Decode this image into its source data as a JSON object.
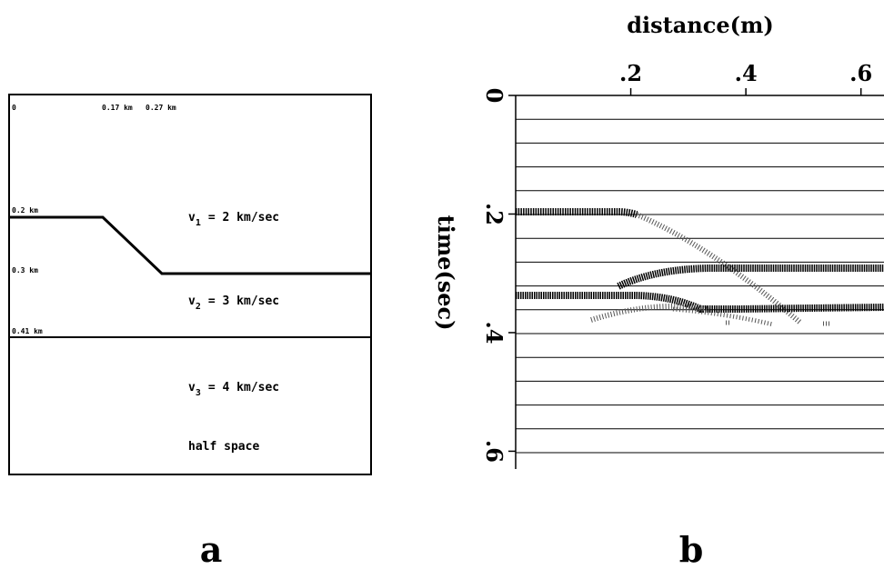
{
  "panel_a": {
    "label": "a",
    "top_labels": [
      "0",
      "0.17 km",
      "0.27 km"
    ],
    "depth_labels": [
      "0.2 km",
      "0.3 km",
      "0.41 km"
    ],
    "layers": [
      {
        "symbol": "v",
        "subscript": "1",
        "text": "= 2 km/sec"
      },
      {
        "symbol": "v",
        "subscript": "2",
        "text": "= 3 km/sec"
      },
      {
        "symbol": "v",
        "subscript": "3",
        "text": "= 4 km/sec"
      }
    ],
    "half_space": "half space"
  },
  "panel_b": {
    "label": "b",
    "x_label": "distance(m)",
    "y_label": "time(sec)",
    "xlim": [
      0,
      0.64
    ],
    "ylim": [
      0,
      0.63
    ],
    "xticks": [
      {
        "value": 0.2,
        "label": ".2"
      },
      {
        "value": 0.4,
        "label": ".4"
      },
      {
        "value": 0.6,
        "label": ".6"
      }
    ],
    "yticks": [
      0,
      {
        "value": 0.2,
        "label": ".2"
      },
      {
        "value": 0.4,
        "label": ".4"
      },
      {
        "value": 0.6,
        "label": ".6"
      }
    ]
  }
}
